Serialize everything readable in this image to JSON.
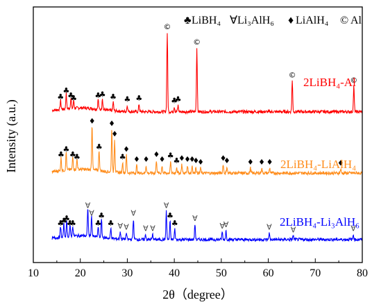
{
  "chart_data": {
    "type": "line",
    "xlabel": "2θ（degree）",
    "ylabel": "Intensity (a.u.)",
    "xlim": [
      10,
      80
    ],
    "xticks": [
      10,
      20,
      30,
      40,
      50,
      60,
      70,
      80
    ],
    "legend": {
      "position": "top-right",
      "entries": [
        {
          "symbol": "club",
          "label": "LiBH₄"
        },
        {
          "symbol": "forall",
          "label": "Li₃AlH₆"
        },
        {
          "symbol": "diamond",
          "label": "LiAlH₄"
        },
        {
          "symbol": "copyright",
          "label": "Al"
        }
      ]
    },
    "series": [
      {
        "name": "2LiBH₄-Al",
        "color": "#ff0000",
        "baseline": 0.59,
        "peaks": [
          [
            15.8,
            0.035
          ],
          [
            17.0,
            0.06
          ],
          [
            18.0,
            0.04
          ],
          [
            18.6,
            0.03
          ],
          [
            23.8,
            0.04
          ],
          [
            24.7,
            0.045
          ],
          [
            27.0,
            0.035
          ],
          [
            30.0,
            0.025
          ],
          [
            32.5,
            0.03
          ],
          [
            38.5,
            0.31
          ],
          [
            40.0,
            0.02
          ],
          [
            40.8,
            0.025
          ],
          [
            44.8,
            0.25
          ],
          [
            65.1,
            0.12
          ],
          [
            78.2,
            0.1
          ]
        ]
      },
      {
        "name": "2LiBH₄-LiAlH₄",
        "color": "#ff8c1a",
        "baseline": 0.35,
        "peaks": [
          [
            15.9,
            0.05
          ],
          [
            17.0,
            0.07
          ],
          [
            18.4,
            0.05
          ],
          [
            19.3,
            0.04
          ],
          [
            22.5,
            0.18
          ],
          [
            24.0,
            0.08
          ],
          [
            26.7,
            0.17
          ],
          [
            27.3,
            0.13
          ],
          [
            29.0,
            0.04
          ],
          [
            29.8,
            0.07
          ],
          [
            32.0,
            0.03
          ],
          [
            34.0,
            0.03
          ],
          [
            36.2,
            0.05
          ],
          [
            37.4,
            0.03
          ],
          [
            39.2,
            0.045
          ],
          [
            40.5,
            0.025
          ],
          [
            41.6,
            0.035
          ],
          [
            42.8,
            0.03
          ],
          [
            43.8,
            0.03
          ],
          [
            44.6,
            0.025
          ],
          [
            45.6,
            0.02
          ],
          [
            50.4,
            0.035
          ],
          [
            51.2,
            0.025
          ],
          [
            56.2,
            0.02
          ],
          [
            58.6,
            0.02
          ],
          [
            60.3,
            0.02
          ],
          [
            75.4,
            0.015
          ]
        ]
      },
      {
        "name": "2LiBH₄-Li₃AlH₆",
        "color": "#0000ff",
        "baseline": 0.09,
        "peaks": [
          [
            15.8,
            0.04
          ],
          [
            16.5,
            0.05
          ],
          [
            17.1,
            0.06
          ],
          [
            17.8,
            0.04
          ],
          [
            18.4,
            0.04
          ],
          [
            21.6,
            0.11
          ],
          [
            22.4,
            0.08
          ],
          [
            23.8,
            0.04
          ],
          [
            24.5,
            0.07
          ],
          [
            26.5,
            0.04
          ],
          [
            28.5,
            0.03
          ],
          [
            29.8,
            0.025
          ],
          [
            31.3,
            0.08
          ],
          [
            33.9,
            0.02
          ],
          [
            35.4,
            0.02
          ],
          [
            38.3,
            0.11
          ],
          [
            39.1,
            0.07
          ],
          [
            40.1,
            0.04
          ],
          [
            44.4,
            0.06
          ],
          [
            50.2,
            0.03
          ],
          [
            51.0,
            0.035
          ],
          [
            60.2,
            0.025
          ],
          [
            65.3,
            0.015
          ],
          [
            78.1,
            0.02
          ]
        ]
      }
    ],
    "markers": [
      {
        "series": 0,
        "symbol": "club",
        "x": [
          15.8,
          17.0,
          18.0,
          18.6,
          23.8,
          24.7,
          27.0,
          30.0,
          32.5,
          40.0,
          40.8
        ]
      },
      {
        "series": 0,
        "symbol": "copyright",
        "x": [
          38.5,
          44.8,
          65.1,
          78.2
        ]
      },
      {
        "series": 1,
        "symbol": "club",
        "x": [
          15.9,
          17.0,
          18.4,
          19.3,
          24.0,
          29.0,
          39.2,
          40.5
        ]
      },
      {
        "series": 1,
        "symbol": "diamond",
        "x": [
          22.5,
          26.7,
          27.3,
          29.8,
          32.0,
          34.0,
          36.2,
          37.4,
          41.6,
          42.8,
          43.8,
          44.6,
          45.6,
          50.4,
          51.2,
          56.2,
          58.6,
          60.3,
          75.4
        ]
      },
      {
        "series": 2,
        "symbol": "club",
        "x": [
          15.8,
          16.5,
          17.1,
          17.8,
          18.4,
          23.8,
          24.5,
          26.5,
          39.1,
          40.1
        ]
      },
      {
        "series": 2,
        "symbol": "forall",
        "x": [
          21.6,
          22.4,
          28.5,
          29.8,
          31.3,
          33.9,
          35.4,
          38.3,
          44.4,
          50.2,
          51.0,
          60.2,
          65.3,
          78.1
        ]
      }
    ]
  }
}
